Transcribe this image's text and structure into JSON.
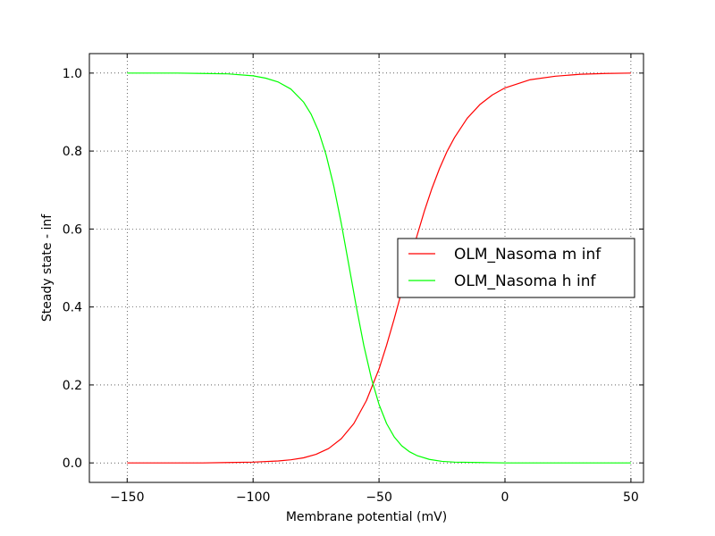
{
  "chart_data": {
    "type": "line",
    "title": "",
    "xlabel": "Membrane potential (mV)",
    "ylabel": "Steady state - inf",
    "xlim": [
      -165,
      55
    ],
    "ylim": [
      -0.05,
      1.05
    ],
    "xticks": [
      -150,
      -100,
      -50,
      0,
      50
    ],
    "xtick_labels": [
      "−150",
      "−100",
      "−50",
      "0",
      "50"
    ],
    "yticks": [
      0.0,
      0.2,
      0.4,
      0.6,
      0.8,
      1.0
    ],
    "ytick_labels": [
      "0.0",
      "0.2",
      "0.4",
      "0.6",
      "0.8",
      "1.0"
    ],
    "grid": true,
    "legend_position": "center-right",
    "series": [
      {
        "name": "OLM_Nasoma m inf",
        "color": "#ff0000",
        "x": [
          -150,
          -140,
          -130,
          -120,
          -110,
          -100,
          -90,
          -85,
          -80,
          -75,
          -70,
          -65,
          -60,
          -55,
          -50,
          -47,
          -44,
          -41,
          -38,
          -35,
          -32,
          -29,
          -26,
          -23,
          -20,
          -15,
          -10,
          -5,
          0,
          10,
          20,
          30,
          40,
          50
        ],
        "y": [
          0.0,
          0.0,
          0.0,
          0.0,
          0.001,
          0.002,
          0.005,
          0.008,
          0.013,
          0.022,
          0.037,
          0.062,
          0.101,
          0.16,
          0.241,
          0.302,
          0.369,
          0.44,
          0.512,
          0.581,
          0.646,
          0.704,
          0.755,
          0.799,
          0.835,
          0.884,
          0.919,
          0.944,
          0.962,
          0.983,
          0.992,
          0.997,
          0.999,
          1.0
        ]
      },
      {
        "name": "OLM_Nasoma h inf",
        "color": "#00ff00",
        "x": [
          -150,
          -140,
          -130,
          -120,
          -110,
          -100,
          -95,
          -90,
          -85,
          -80,
          -77,
          -74,
          -71,
          -68,
          -65,
          -62,
          -59,
          -56,
          -53,
          -50,
          -47,
          -44,
          -41,
          -38,
          -35,
          -30,
          -25,
          -20,
          -10,
          0,
          10,
          20,
          30,
          40,
          50
        ],
        "y": [
          1.0,
          1.0,
          1.0,
          0.999,
          0.998,
          0.993,
          0.987,
          0.977,
          0.959,
          0.926,
          0.895,
          0.851,
          0.79,
          0.711,
          0.615,
          0.508,
          0.4,
          0.3,
          0.216,
          0.15,
          0.101,
          0.067,
          0.044,
          0.029,
          0.019,
          0.009,
          0.004,
          0.002,
          0.001,
          0.0,
          0.0,
          0.0,
          0.0,
          0.0,
          0.0
        ]
      }
    ]
  }
}
